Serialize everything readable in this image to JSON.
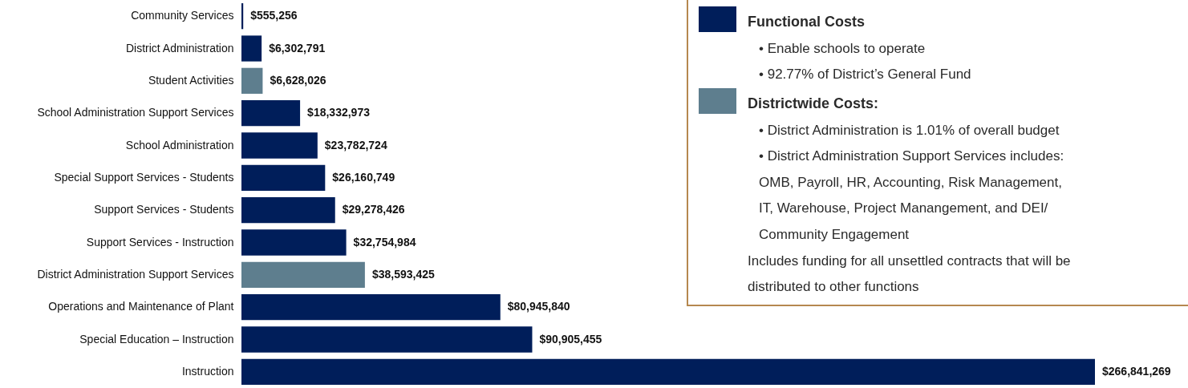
{
  "chart_data": {
    "type": "bar",
    "orientation": "horizontal",
    "legend": "top right",
    "categories": [
      "Community Services",
      "District Administration",
      "Student Activities",
      "School Administration Support Services",
      "School Administration",
      "Special Support Services - Students",
      "Support Services - Students",
      "Support Services - Instruction",
      "District Administration Support Services",
      "Operations and Maintenance of Plant",
      "Special Education – Instruction",
      "Instruction"
    ],
    "series": [
      {
        "name": "Functional Costs",
        "color": "#001e5a",
        "values": [
          555256,
          6302791,
          null,
          18332973,
          23782724,
          26160749,
          29278426,
          32754984,
          null,
          80945840,
          90905455,
          266841269
        ],
        "value_labels": [
          "$555,256",
          "$6,302,791",
          null,
          "$18,332,973",
          "$23,782,724",
          "$26,160,749",
          "$29,278,426",
          "$32,754,984",
          null,
          "$80,945,840",
          "$90,905,455",
          "$266,841,269"
        ]
      },
      {
        "name": "Districtwide Costs:",
        "color": "#5e7e8e",
        "values": [
          null,
          null,
          6628026,
          null,
          null,
          null,
          null,
          null,
          38593425,
          null,
          null,
          null
        ],
        "value_labels": [
          null,
          null,
          "$6,628,026",
          null,
          null,
          null,
          null,
          null,
          "$38,593,425",
          null,
          null,
          null
        ]
      }
    ],
    "annotations": [
      "• Enable schools to operate",
      "• 92.77% of District’s General Fund",
      "• District Administration is 1.01% of overall budget",
      "• District Administration Support Services includes:\nOMB, Payroll, HR, Accounting, Risk Management,\nIT, Warehouse, Project Manangement, and DEI/\nCommunity Engagement",
      "Includes funding for all unsettled contracts that will be\ndistributed to other functions"
    ]
  }
}
